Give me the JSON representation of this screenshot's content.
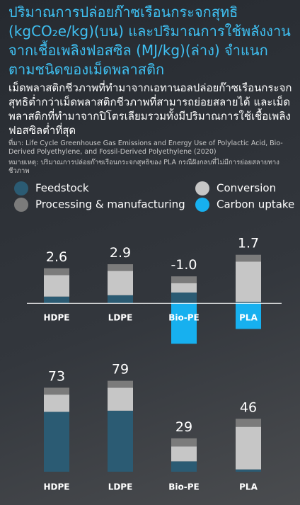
{
  "header": {
    "title": "ปริมาณการปล่อยก๊าซเรือนกระจกสุทธิ (kgCO₂e/kg)(บน) และปริมาณการใช้พลังงานจากเชื้อเพลิงฟอสซิล (MJ/kg)(ล่าง) จำแนกตามชนิดของเม็ดพลาสติก",
    "description": "เม็ดพลาสติกชีวภาพที่ทำมาจากเอทานอลปล่อยก๊าซเรือนกระจกสุทธิต่ำกว่าเม็ดพลาสติกชีวภาพที่สามารถย่อยสลายได้ และเม็ดพลาสติกที่ทำมาจากปิโตรเลียมรวมทั้งมีปริมาณการใช้เชื้อเพลิงฟอสซิลต่ำที่สุด",
    "source": "ที่มา: Life Cycle Greenhouse Gas Emissions and Energy Use of Polylactic Acid, Bio-Derived Polyethylene, and Fossil-Derived Polyethylene (2020)",
    "note": "หมายเหตุ: ปริมาณการปล่อยก๊าซเรือนกระจกสุทธิของ PLA กรณีฝังกลบที่ไม่มีการย่อยสลายทางชีวภาพ"
  },
  "chart_data": [
    {
      "type": "stacked_bar",
      "categories": [
        "HDPE",
        "LDPE",
        "Bio-PE",
        "PLA"
      ],
      "ylim": [
        -3.4,
        3.9
      ],
      "series": [
        {
          "name": "Feedstock",
          "color": "#2b5b73",
          "values": [
            0.5,
            0.6,
            0.8,
            0.1
          ]
        },
        {
          "name": "Conversion",
          "color": "#c6c6c6",
          "values": [
            1.6,
            1.8,
            0.7,
            3.0
          ]
        },
        {
          "name": "Processing & manufacturing",
          "color": "#7b7b7b",
          "values": [
            0.5,
            0.5,
            0.5,
            0.5
          ]
        },
        {
          "name": "Carbon uptake",
          "color": "#17b0ef",
          "values": [
            0,
            0,
            -3.0,
            -1.9
          ]
        }
      ],
      "totals": [
        2.6,
        2.9,
        -1.0,
        1.7
      ],
      "value_labels": [
        "2.6",
        "2.9",
        "-1.0",
        "1.7"
      ]
    },
    {
      "type": "stacked_bar",
      "categories": [
        "HDPE",
        "LDPE",
        "Bio-PE",
        "PLA"
      ],
      "ylim": [
        0,
        80
      ],
      "series": [
        {
          "name": "Feedstock",
          "color": "#2b5b73",
          "values": [
            52,
            53,
            9,
            2
          ]
        },
        {
          "name": "Conversion",
          "color": "#c6c6c6",
          "values": [
            15,
            20,
            13,
            37
          ]
        },
        {
          "name": "Processing & manufacturing",
          "color": "#7b7b7b",
          "values": [
            6,
            6,
            7,
            7
          ]
        }
      ],
      "totals": [
        73,
        79,
        29,
        46
      ]
    }
  ]
}
